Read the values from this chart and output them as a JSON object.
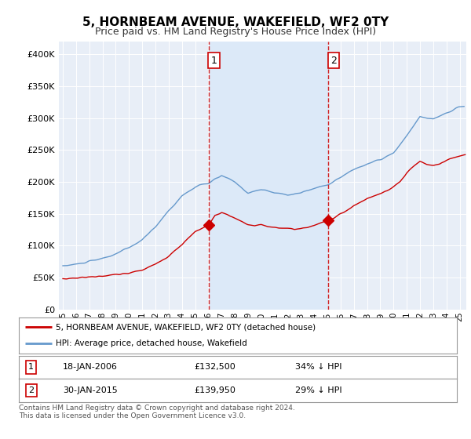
{
  "title": "5, HORNBEAM AVENUE, WAKEFIELD, WF2 0TY",
  "subtitle": "Price paid vs. HM Land Registry's House Price Index (HPI)",
  "legend_line1": "5, HORNBEAM AVENUE, WAKEFIELD, WF2 0TY (detached house)",
  "legend_line2": "HPI: Average price, detached house, Wakefield",
  "footer": "Contains HM Land Registry data © Crown copyright and database right 2024.\nThis data is licensed under the Open Government Licence v3.0.",
  "sale1_label": "1",
  "sale1_date": "18-JAN-2006",
  "sale1_price": "£132,500",
  "sale1_hpi": "34% ↓ HPI",
  "sale2_label": "2",
  "sale2_date": "30-JAN-2015",
  "sale2_price": "£139,950",
  "sale2_hpi": "29% ↓ HPI",
  "red_color": "#cc0000",
  "blue_color": "#6699cc",
  "shade_color": "#dce9f8",
  "plot_bg": "#e8eef7",
  "vline_color": "#cc0000",
  "ylim": [
    0,
    420000
  ],
  "yticks": [
    0,
    50000,
    100000,
    150000,
    200000,
    250000,
    300000,
    350000,
    400000
  ],
  "sale1_x": 2006.04,
  "sale1_y": 132500,
  "sale2_x": 2015.08,
  "sale2_y": 139950,
  "xlim_left": 1994.7,
  "xlim_right": 2025.5
}
